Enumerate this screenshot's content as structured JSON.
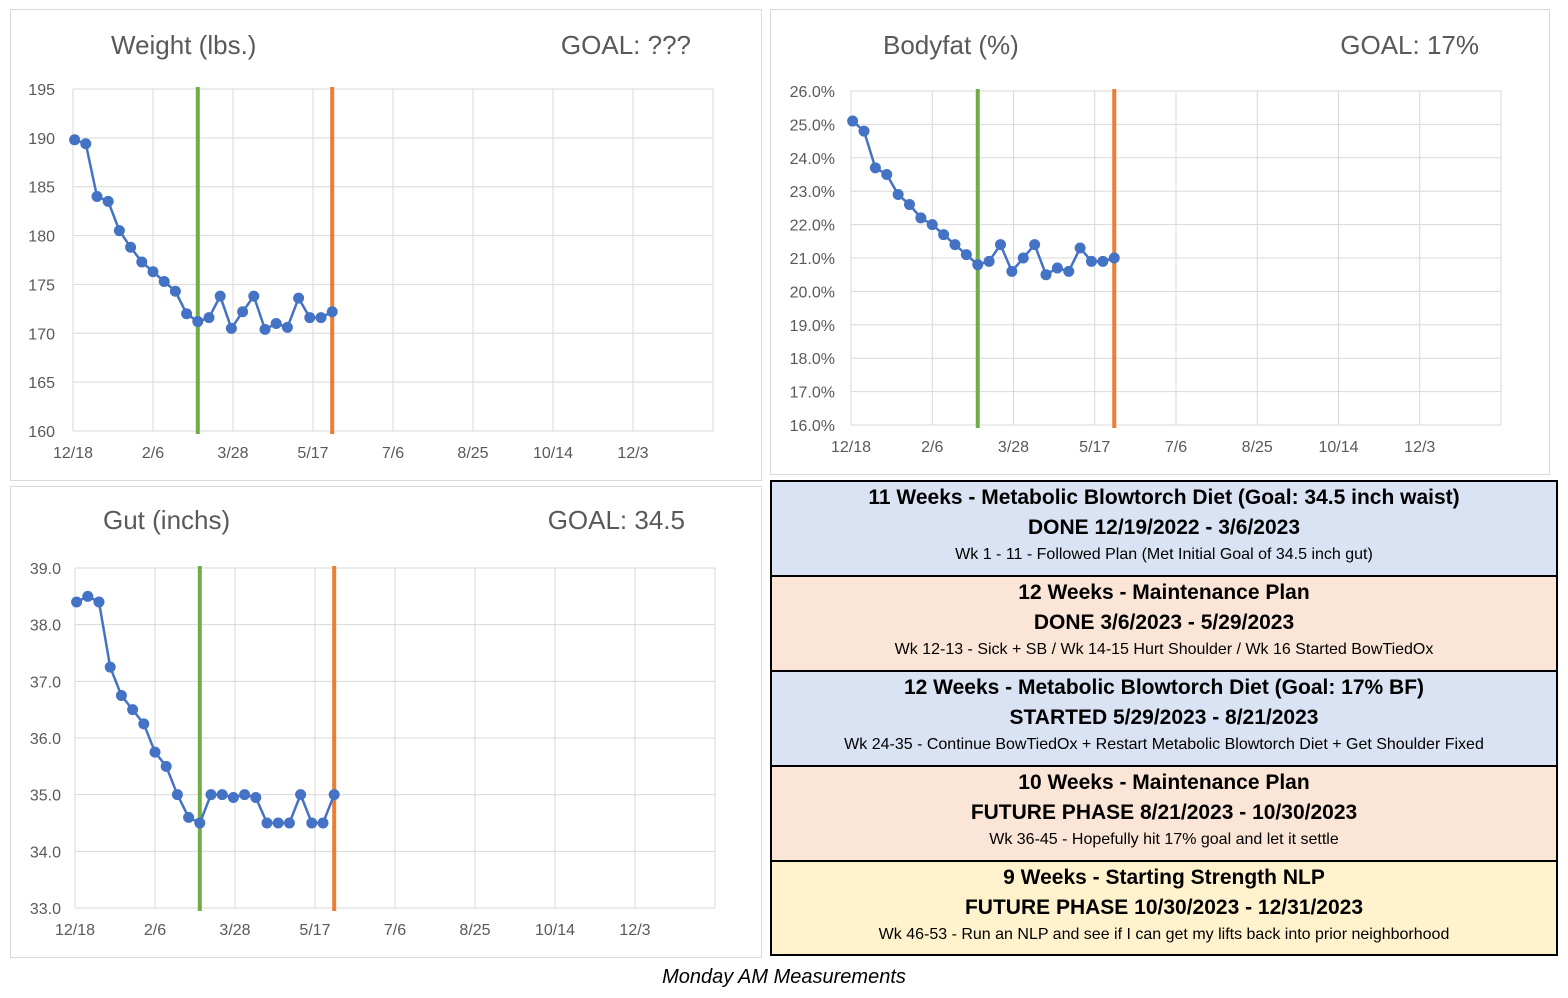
{
  "chart_data": [
    {
      "id": "weight",
      "type": "line",
      "title": "Weight (lbs.)",
      "goal": "GOAL: ???",
      "ylim": [
        160,
        195
      ],
      "yticks": [
        "160",
        "165",
        "170",
        "175",
        "180",
        "185",
        "190",
        "195"
      ],
      "xlim": [
        "2022-12-18",
        "2023-12-31"
      ],
      "xtick_labels": [
        "12/18",
        "2/6",
        "3/28",
        "5/17",
        "7/6",
        "8/25",
        "10/14",
        "12/3"
      ],
      "grid": true,
      "x": [
        "2022-12-19",
        "2022-12-26",
        "2023-01-02",
        "2023-01-09",
        "2023-01-16",
        "2023-01-23",
        "2023-01-30",
        "2023-02-06",
        "2023-02-13",
        "2023-02-20",
        "2023-02-27",
        "2023-03-06",
        "2023-03-13",
        "2023-03-20",
        "2023-03-27",
        "2023-04-03",
        "2023-04-10",
        "2023-04-17",
        "2023-04-24",
        "2023-05-01",
        "2023-05-08",
        "2023-05-15",
        "2023-05-22",
        "2023-05-29"
      ],
      "values": [
        189.8,
        189.4,
        184.0,
        183.5,
        180.5,
        178.8,
        177.3,
        176.3,
        175.3,
        174.3,
        172.0,
        171.2,
        171.6,
        173.8,
        170.5,
        172.2,
        173.8,
        170.4,
        171.0,
        170.6,
        173.6,
        171.6,
        171.6,
        172.2
      ],
      "series_color": "#4472c4",
      "markers": [
        {
          "date": "2023-03-06",
          "color": "#70ad47"
        },
        {
          "date": "2023-05-29",
          "color": "#ed7d31"
        }
      ]
    },
    {
      "id": "bodyfat",
      "type": "line",
      "title": "Bodyfat (%)",
      "goal": "GOAL: 17%",
      "ylim": [
        16.0,
        26.0
      ],
      "yticks": [
        "16.0%",
        "17.0%",
        "18.0%",
        "19.0%",
        "20.0%",
        "21.0%",
        "22.0%",
        "23.0%",
        "24.0%",
        "25.0%",
        "26.0%"
      ],
      "xlim": [
        "2022-12-18",
        "2023-12-31"
      ],
      "xtick_labels": [
        "12/18",
        "2/6",
        "3/28",
        "5/17",
        "7/6",
        "8/25",
        "10/14",
        "12/3"
      ],
      "grid": true,
      "x": [
        "2022-12-19",
        "2022-12-26",
        "2023-01-02",
        "2023-01-09",
        "2023-01-16",
        "2023-01-23",
        "2023-01-30",
        "2023-02-06",
        "2023-02-13",
        "2023-02-20",
        "2023-02-27",
        "2023-03-06",
        "2023-03-13",
        "2023-03-20",
        "2023-03-27",
        "2023-04-03",
        "2023-04-10",
        "2023-04-17",
        "2023-04-24",
        "2023-05-01",
        "2023-05-08",
        "2023-05-15",
        "2023-05-22",
        "2023-05-29"
      ],
      "values": [
        25.1,
        24.8,
        23.7,
        23.5,
        22.9,
        22.6,
        22.2,
        22.0,
        21.7,
        21.4,
        21.1,
        20.8,
        20.9,
        21.4,
        20.6,
        21.0,
        21.4,
        20.5,
        20.7,
        20.6,
        21.3,
        20.9,
        20.9,
        21.0
      ],
      "series_color": "#4472c4",
      "markers": [
        {
          "date": "2023-03-06",
          "color": "#70ad47"
        },
        {
          "date": "2023-05-29",
          "color": "#ed7d31"
        }
      ]
    },
    {
      "id": "gut",
      "type": "line",
      "title": "Gut (inchs)",
      "goal": "GOAL: 34.5",
      "ylim": [
        33.0,
        39.0
      ],
      "yticks": [
        "33.0",
        "34.0",
        "35.0",
        "36.0",
        "37.0",
        "38.0",
        "39.0"
      ],
      "xlim": [
        "2022-12-18",
        "2023-12-31"
      ],
      "xtick_labels": [
        "12/18",
        "2/6",
        "3/28",
        "5/17",
        "7/6",
        "8/25",
        "10/14",
        "12/3"
      ],
      "grid": true,
      "x": [
        "2022-12-19",
        "2022-12-26",
        "2023-01-02",
        "2023-01-09",
        "2023-01-16",
        "2023-01-23",
        "2023-01-30",
        "2023-02-06",
        "2023-02-13",
        "2023-02-20",
        "2023-02-27",
        "2023-03-06",
        "2023-03-13",
        "2023-03-20",
        "2023-03-27",
        "2023-04-03",
        "2023-04-10",
        "2023-04-17",
        "2023-04-24",
        "2023-05-01",
        "2023-05-08",
        "2023-05-15",
        "2023-05-22",
        "2023-05-29"
      ],
      "values": [
        38.4,
        38.5,
        38.4,
        37.25,
        36.75,
        36.5,
        36.25,
        35.75,
        35.5,
        35.0,
        34.6,
        34.5,
        35.0,
        35.0,
        34.95,
        35.0,
        34.95,
        34.5,
        34.5,
        34.5,
        35.0,
        34.5,
        34.5,
        35.0
      ],
      "series_color": "#4472c4",
      "markers": [
        {
          "date": "2023-03-06",
          "color": "#70ad47"
        },
        {
          "date": "2023-05-29",
          "color": "#ed7d31"
        }
      ]
    }
  ],
  "phases": [
    {
      "title": "11 Weeks - Metabolic Blowtorch Diet (Goal: 34.5 inch waist)",
      "dates": "DONE 12/19/2022 - 3/6/2023",
      "note": "Wk 1 - 11 - Followed Plan (Met Initial Goal of 34.5 inch gut)",
      "bg": "#dae3f3"
    },
    {
      "title": "12 Weeks - Maintenance Plan",
      "dates": "DONE 3/6/2023 - 5/29/2023",
      "note": "Wk 12-13 - Sick + SB / Wk 14-15 Hurt Shoulder / Wk 16 Started BowTiedOx",
      "bg": "#fbe5d6"
    },
    {
      "title": "12 Weeks - Metabolic Blowtorch Diet (Goal: 17% BF)",
      "dates": "STARTED 5/29/2023 - 8/21/2023",
      "note": "Wk 24-35 - Continue BowTiedOx + Restart Metabolic Blowtorch Diet + Get Shoulder Fixed",
      "bg": "#dae3f3"
    },
    {
      "title": "10 Weeks - Maintenance Plan",
      "dates": "FUTURE PHASE 8/21/2023 - 10/30/2023",
      "note": "Wk 36-45 - Hopefully hit  17% goal and let it settle",
      "bg": "#fbe5d6"
    },
    {
      "title": "9 Weeks - Starting Strength NLP",
      "dates": "FUTURE PHASE 10/30/2023 - 12/31/2023",
      "note": "Wk 46-53 - Run an NLP and see if I can get my lifts back into prior neighborhood",
      "bg": "#fff2cc"
    }
  ],
  "caption": "Monday AM Measurements"
}
